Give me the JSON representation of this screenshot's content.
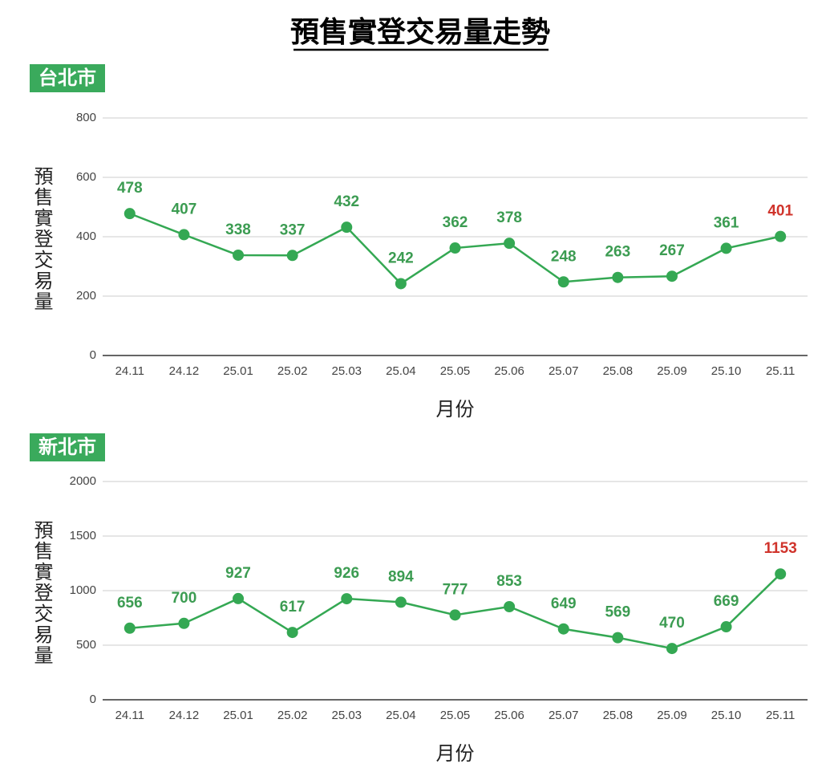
{
  "title": "預售實登交易量走勢",
  "chart_data": [
    {
      "type": "line",
      "subtitle": "台北市",
      "y_label": "預售實登交易量",
      "x_label": "月份",
      "categories": [
        "24.11",
        "24.12",
        "25.01",
        "25.02",
        "25.03",
        "25.04",
        "25.05",
        "25.06",
        "25.07",
        "25.08",
        "25.09",
        "25.10",
        "25.11"
      ],
      "values": [
        478,
        407,
        338,
        337,
        432,
        242,
        362,
        378,
        248,
        263,
        267,
        361,
        401
      ],
      "color": "#34a853",
      "value_label_colors": [
        "#3c9c52",
        "#3c9c52",
        "#3c9c52",
        "#3c9c52",
        "#3c9c52",
        "#3c9c52",
        "#3c9c52",
        "#3c9c52",
        "#3c9c52",
        "#3c9c52",
        "#3c9c52",
        "#3c9c52",
        "#d0342c"
      ],
      "ylim": [
        0,
        800
      ],
      "yticks": [
        0,
        200,
        400,
        600,
        800
      ],
      "grid": true
    },
    {
      "type": "line",
      "subtitle": "新北市",
      "y_label": "預售實登交易量",
      "x_label": "月份",
      "categories": [
        "24.11",
        "24.12",
        "25.01",
        "25.02",
        "25.03",
        "25.04",
        "25.05",
        "25.06",
        "25.07",
        "25.08",
        "25.09",
        "25.10",
        "25.11"
      ],
      "values": [
        656,
        700,
        927,
        617,
        926,
        894,
        777,
        853,
        649,
        569,
        470,
        669,
        1153
      ],
      "color": "#34a853",
      "value_label_colors": [
        "#3c9c52",
        "#3c9c52",
        "#3c9c52",
        "#3c9c52",
        "#3c9c52",
        "#3c9c52",
        "#3c9c52",
        "#3c9c52",
        "#3c9c52",
        "#3c9c52",
        "#3c9c52",
        "#3c9c52",
        "#d0342c"
      ],
      "ylim": [
        0,
        2000
      ],
      "yticks": [
        0,
        500,
        1000,
        1500,
        2000
      ],
      "grid": true
    }
  ]
}
